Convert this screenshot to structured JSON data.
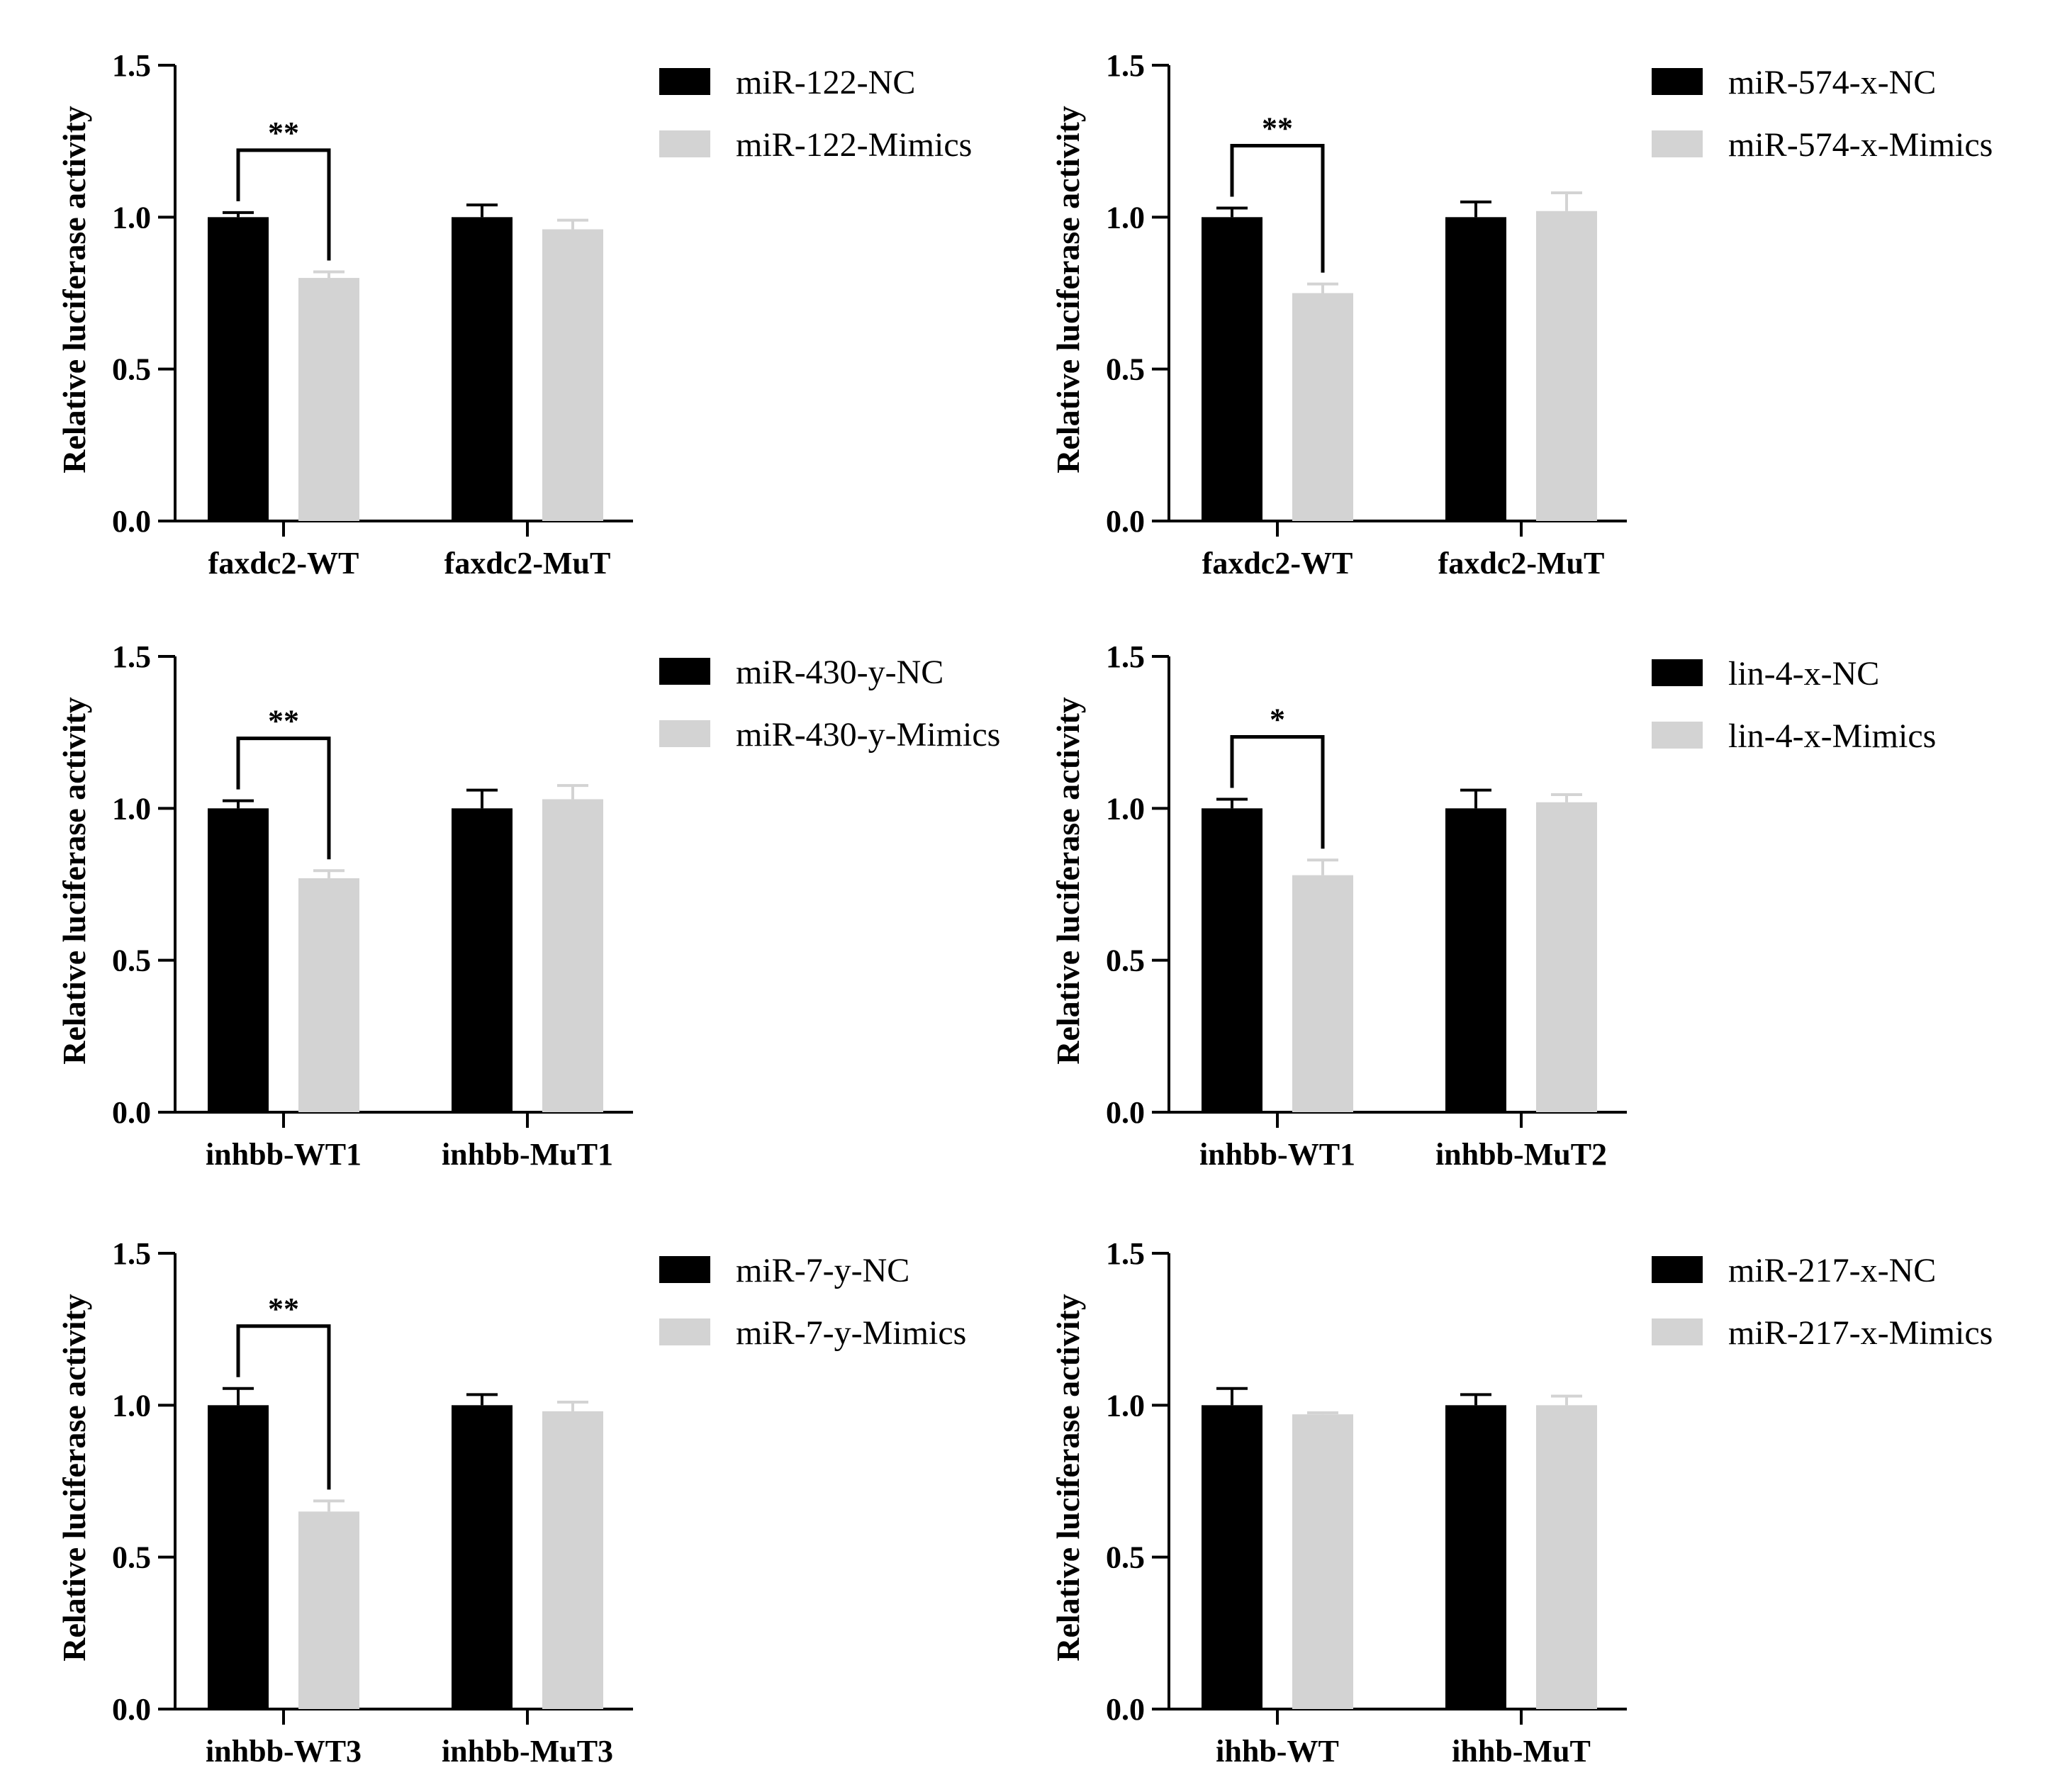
{
  "colors": {
    "nc": "#000000",
    "mimics": "#d3d3d3"
  },
  "chart_data": [
    {
      "type": "bar",
      "ylabel": "Relative luciferase activity",
      "ylim": [
        0,
        1.5
      ],
      "yticks": [
        "0.0",
        "0.5",
        "1.0",
        "1.5"
      ],
      "categories": [
        "faxdc2-WT",
        "faxdc2-MuT"
      ],
      "series": [
        {
          "name": "miR-122-NC",
          "values": [
            1.0,
            1.0
          ],
          "errors": [
            0.015,
            0.04
          ]
        },
        {
          "name": "miR-122-Mimics",
          "values": [
            0.8,
            0.96
          ],
          "errors": [
            0.02,
            0.03
          ]
        }
      ],
      "significance": [
        {
          "category": 0,
          "label": "**"
        }
      ],
      "legend": "right"
    },
    {
      "type": "bar",
      "ylabel": "Relative luciferase activity",
      "ylim": [
        0,
        1.5
      ],
      "yticks": [
        "0.0",
        "0.5",
        "1.0",
        "1.5"
      ],
      "categories": [
        "faxdc2-WT",
        "faxdc2-MuT"
      ],
      "series": [
        {
          "name": "miR-574-x-NC",
          "values": [
            1.0,
            1.0
          ],
          "errors": [
            0.03,
            0.05
          ]
        },
        {
          "name": "miR-574-x-Mimics",
          "values": [
            0.75,
            1.02
          ],
          "errors": [
            0.03,
            0.06
          ]
        }
      ],
      "significance": [
        {
          "category": 0,
          "label": "**"
        }
      ],
      "legend": "right"
    },
    {
      "type": "bar",
      "ylabel": "Relative luciferase activity",
      "ylim": [
        0,
        1.5
      ],
      "yticks": [
        "0.0",
        "0.5",
        "1.0",
        "1.5"
      ],
      "categories": [
        "inhbb-WT1",
        "inhbb-MuT1"
      ],
      "series": [
        {
          "name": "miR-430-y-NC",
          "values": [
            1.0,
            1.0
          ],
          "errors": [
            0.025,
            0.06
          ]
        },
        {
          "name": "miR-430-y-Mimics",
          "values": [
            0.77,
            1.03
          ],
          "errors": [
            0.025,
            0.045
          ]
        }
      ],
      "significance": [
        {
          "category": 0,
          "label": "**"
        }
      ],
      "legend": "right"
    },
    {
      "type": "bar",
      "ylabel": "Relative luciferase activity",
      "ylim": [
        0,
        1.5
      ],
      "yticks": [
        "0.0",
        "0.5",
        "1.0",
        "1.5"
      ],
      "categories": [
        "inhbb-WT1",
        "inhbb-MuT2"
      ],
      "series": [
        {
          "name": "lin-4-x-NC",
          "values": [
            1.0,
            1.0
          ],
          "errors": [
            0.03,
            0.06
          ]
        },
        {
          "name": "lin-4-x-Mimics",
          "values": [
            0.78,
            1.02
          ],
          "errors": [
            0.05,
            0.025
          ]
        }
      ],
      "significance": [
        {
          "category": 0,
          "label": "*"
        }
      ],
      "legend": "right"
    },
    {
      "type": "bar",
      "ylabel": "Relative luciferase activity",
      "ylim": [
        0,
        1.5
      ],
      "yticks": [
        "0.0",
        "0.5",
        "1.0",
        "1.5"
      ],
      "categories": [
        "inhbb-WT3",
        "inhbb-MuT3"
      ],
      "series": [
        {
          "name": "miR-7-y-NC",
          "values": [
            1.0,
            1.0
          ],
          "errors": [
            0.055,
            0.035
          ]
        },
        {
          "name": "miR-7-y-Mimics",
          "values": [
            0.65,
            0.98
          ],
          "errors": [
            0.035,
            0.03
          ]
        }
      ],
      "significance": [
        {
          "category": 0,
          "label": "**"
        }
      ],
      "legend": "right"
    },
    {
      "type": "bar",
      "ylabel": "Relative luciferase activity",
      "ylim": [
        0,
        1.5
      ],
      "yticks": [
        "0.0",
        "0.5",
        "1.0",
        "1.5"
      ],
      "categories": [
        "ihhb-WT",
        "ihhb-MuT"
      ],
      "series": [
        {
          "name": "miR-217-x-NC",
          "values": [
            1.0,
            1.0
          ],
          "errors": [
            0.055,
            0.035
          ]
        },
        {
          "name": "miR-217-x-Mimics",
          "values": [
            0.97,
            1.0
          ],
          "errors": [
            0.005,
            0.03
          ]
        }
      ],
      "significance": [],
      "legend": "right"
    }
  ]
}
